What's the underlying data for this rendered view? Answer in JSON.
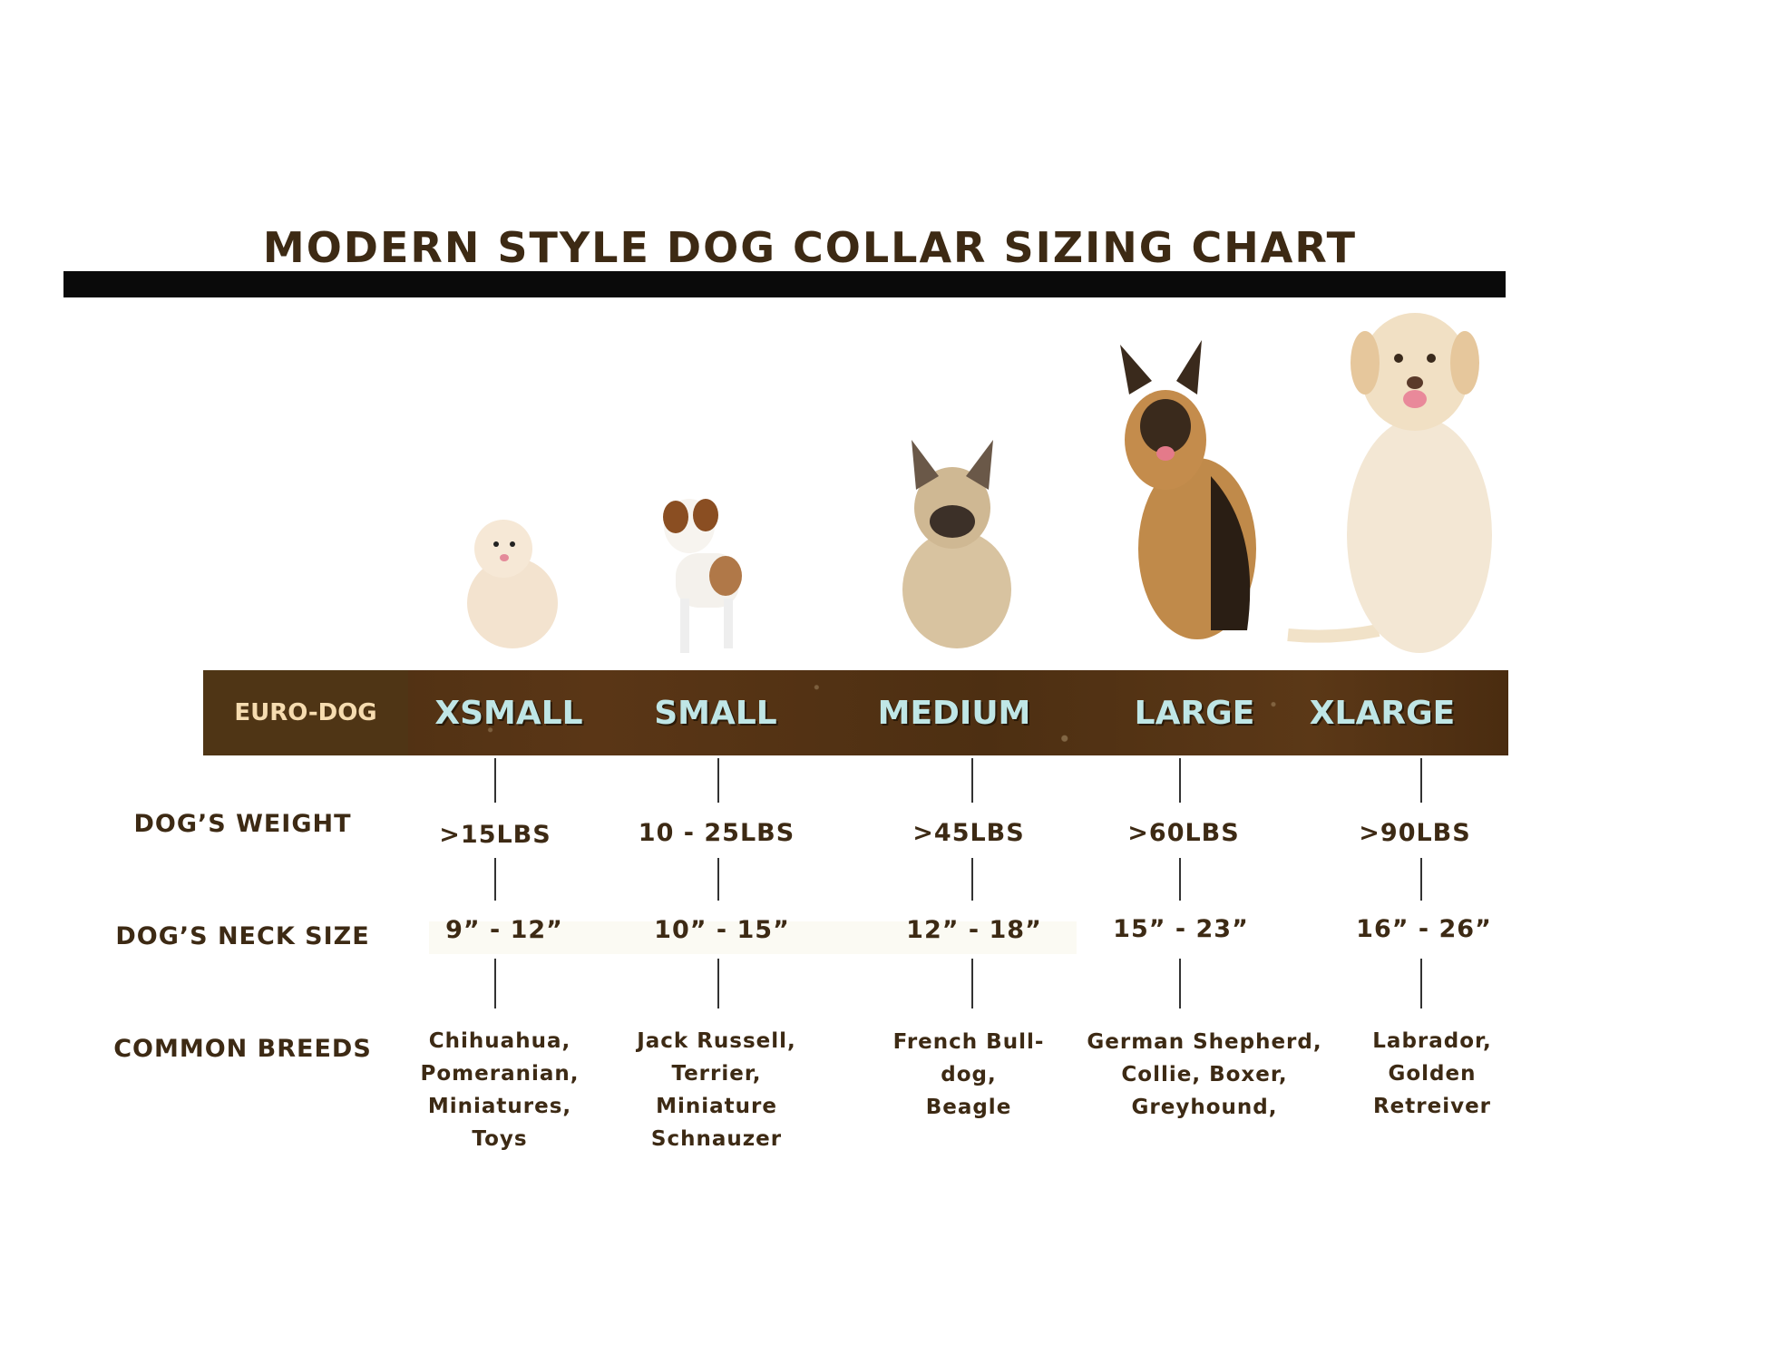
{
  "title": "MODERN STYLE DOG COLLAR SIZING CHART",
  "band": {
    "brand": "EURO-DOG",
    "sizes": [
      "XSMALL",
      "SMALL",
      "MEDIUM",
      "LARGE",
      "XLARGE"
    ],
    "colors": {
      "band": "#4f3515",
      "size_text": "#bfe6e6",
      "brand_text": "#f6dcb0",
      "text": "#3d2a14"
    }
  },
  "rows": {
    "weight_label": "DOG’S WEIGHT",
    "neck_label": "DOG’S NECK SIZE",
    "breeds_label": "COMMON BREEDS"
  },
  "columns": [
    {
      "size": "XSMALL",
      "weight": ">15LBS",
      "neck": "9” - 12”",
      "breeds": [
        "Chihuahua,",
        "Pomeranian,",
        "Miniatures,",
        "Toys"
      ],
      "dog_image": "pomeranian"
    },
    {
      "size": "SMALL",
      "weight": "10 - 25LBS",
      "neck": "10” - 15”",
      "breeds": [
        "Jack Russell,",
        "Terrier,",
        "Miniature",
        "Schnauzer"
      ],
      "dog_image": "jack-russell"
    },
    {
      "size": "MEDIUM",
      "weight": ">45LBS",
      "neck": "12” - 18”",
      "breeds": [
        "French Bull-",
        "dog,",
        "Beagle"
      ],
      "dog_image": "french-bulldog"
    },
    {
      "size": "LARGE",
      "weight": ">60LBS",
      "neck": "15” - 23”",
      "breeds": [
        "German Shepherd,",
        "Collie, Boxer,",
        "Greyhound,"
      ],
      "dog_image": "german-shepherd"
    },
    {
      "size": "XLARGE",
      "weight": ">90LBS",
      "neck": "16” - 26”",
      "breeds": [
        "Labrador,",
        "Golden",
        "Retreiver"
      ],
      "dog_image": "labrador"
    }
  ]
}
